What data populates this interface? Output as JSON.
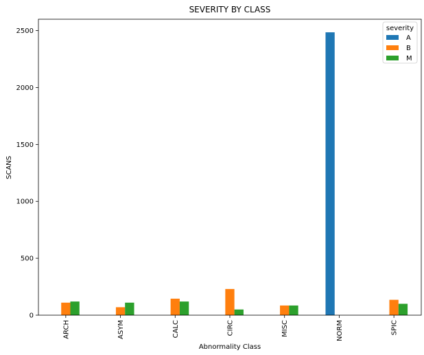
{
  "chart_data": {
    "type": "bar",
    "title": "SEVERITY BY CLASS",
    "xlabel": "Abnormality Class",
    "ylabel": "SCANS",
    "categories": [
      "ARCH",
      "ASYM",
      "CALC",
      "CIRC",
      "MISC",
      "NORM",
      "SPIC"
    ],
    "series": [
      {
        "name": "A",
        "color": "#1f77b4",
        "values": [
          0,
          0,
          0,
          0,
          0,
          2485,
          0
        ]
      },
      {
        "name": "B",
        "color": "#ff7f0e",
        "values": [
          110,
          70,
          145,
          230,
          85,
          0,
          135
        ]
      },
      {
        "name": "M",
        "color": "#2ca02c",
        "values": [
          120,
          110,
          120,
          50,
          85,
          0,
          100
        ]
      }
    ],
    "ylim": [
      0,
      2600
    ],
    "yticks": [
      0,
      500,
      1000,
      1500,
      2000,
      2500
    ],
    "legend": {
      "title": "severity",
      "position": "top-right"
    },
    "grid": false
  }
}
